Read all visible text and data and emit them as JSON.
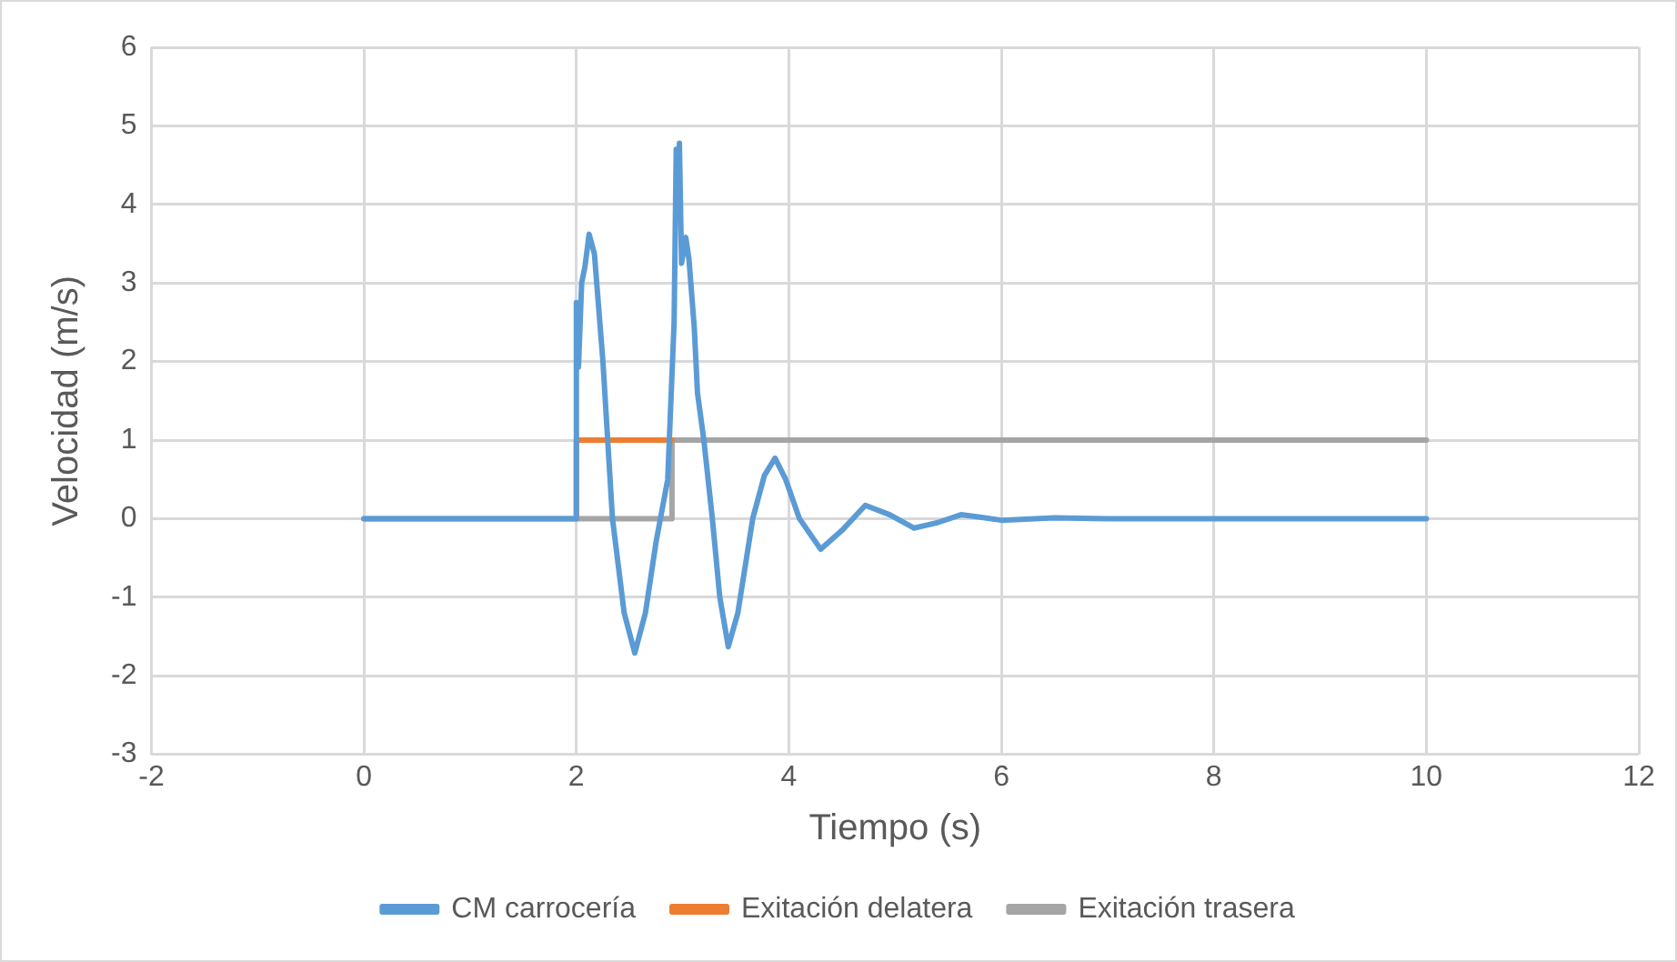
{
  "chart_data": {
    "type": "line",
    "xlabel": "Tiempo (s)",
    "ylabel": "Velocidad (m/s)",
    "xlim": [
      -2,
      12
    ],
    "xticks": [
      -2,
      0,
      2,
      4,
      6,
      8,
      10,
      12
    ],
    "ylim": [
      -3,
      6
    ],
    "yticks": [
      -3,
      -2,
      -1,
      0,
      1,
      2,
      3,
      4,
      5,
      6
    ],
    "grid": true,
    "legend": "bottom",
    "marker": "none",
    "line_style": "solid",
    "series": [
      {
        "name": "CM carrocería",
        "color": "#5b9bd5",
        "x": [
          0,
          1.99,
          2.0,
          2.02,
          2.05,
          2.08,
          2.12,
          2.17,
          2.25,
          2.34,
          2.45,
          2.55,
          2.65,
          2.75,
          2.86,
          2.92,
          2.94,
          2.96,
          2.97,
          2.99,
          3.03,
          3.06,
          3.11,
          3.14,
          3.2,
          3.28,
          3.35,
          3.43,
          3.52,
          3.66,
          3.77,
          3.87,
          3.97,
          4.1,
          4.3,
          4.5,
          4.72,
          4.95,
          5.18,
          5.4,
          5.62,
          5.8,
          6.0,
          6.5,
          7.0,
          8.0,
          9.0,
          10.0
        ],
        "values": [
          0,
          0,
          2.75,
          1.93,
          3.0,
          3.2,
          3.62,
          3.37,
          2.0,
          0,
          -1.2,
          -1.71,
          -1.2,
          -0.3,
          0.5,
          2.5,
          4.7,
          4.0,
          4.78,
          3.25,
          3.58,
          3.3,
          2.43,
          1.6,
          1.0,
          0,
          -1.0,
          -1.63,
          -1.2,
          0,
          0.55,
          0.77,
          0.5,
          0,
          -0.39,
          -0.15,
          0.17,
          0.05,
          -0.12,
          -0.05,
          0.05,
          0.02,
          -0.02,
          0.01,
          0,
          0,
          0,
          0
        ]
      },
      {
        "name": "Exitación delatera",
        "color": "#ed7d31",
        "x": [
          2,
          2,
          2.9
        ],
        "values": [
          0,
          1,
          1
        ]
      },
      {
        "name": "Exitación trasera",
        "color": "#a5a5a5",
        "x": [
          0,
          2.9,
          2.9,
          10
        ],
        "values": [
          0,
          0,
          1,
          1
        ]
      }
    ]
  }
}
